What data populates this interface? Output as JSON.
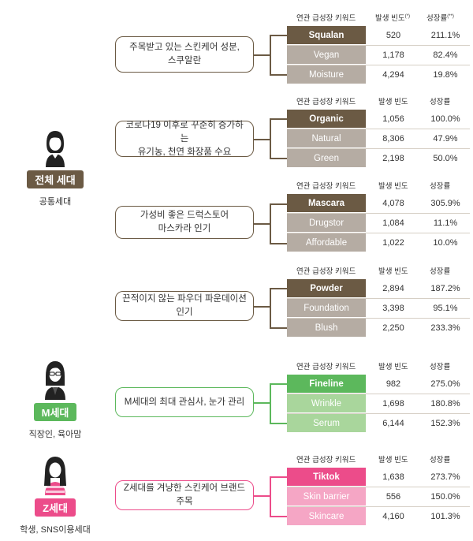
{
  "headers": {
    "keyword": "연관 급성장 키워드",
    "freq": "발생 빈도",
    "growth": "성장률",
    "freq_mark": "(*)",
    "growth_mark": "(**)"
  },
  "generations": [
    {
      "badge": "전체 세대",
      "sub": "공통세대",
      "color": "#6b5a44",
      "icon": "woman-short-hair-icon"
    },
    {
      "badge": "M세대",
      "sub": "직장인, 육아맘",
      "color": "#5cb85c",
      "icon": "woman-glasses-icon"
    },
    {
      "badge": "Z세대",
      "sub": "학생, SNS이용세대",
      "color": "#ec4c8a",
      "icon": "girl-long-hair-icon"
    }
  ],
  "groups": [
    {
      "desc": [
        "주목받고 있는 스킨케어 성분,",
        "스쿠알란"
      ],
      "rows": [
        {
          "keyword": "Squalan",
          "freq": "520",
          "growth": "211.1%"
        },
        {
          "keyword": "Vegan",
          "freq": "1,178",
          "growth": "82.4%"
        },
        {
          "keyword": "Moisture",
          "freq": "4,294",
          "growth": "19.8%"
        }
      ]
    },
    {
      "desc": [
        "코로나19 이후로 꾸준히 증가하는",
        "유기농, 천연 화장품 수요"
      ],
      "rows": [
        {
          "keyword": "Organic",
          "freq": "1,056",
          "growth": "100.0%"
        },
        {
          "keyword": "Natural",
          "freq": "8,306",
          "growth": "47.9%"
        },
        {
          "keyword": "Green",
          "freq": "2,198",
          "growth": "50.0%"
        }
      ]
    },
    {
      "desc": [
        "가성비 좋은 드럭스토어",
        "마스카라 인기"
      ],
      "rows": [
        {
          "keyword": "Mascara",
          "freq": "4,078",
          "growth": "305.9%"
        },
        {
          "keyword": "Drugstor",
          "freq": "1,084",
          "growth": "11.1%"
        },
        {
          "keyword": "Affordable",
          "freq": "1,022",
          "growth": "10.0%"
        }
      ]
    },
    {
      "desc": [
        "끈적이지 않는 파우더 파운데이션 인기"
      ],
      "rows": [
        {
          "keyword": "Powder",
          "freq": "2,894",
          "growth": "187.2%"
        },
        {
          "keyword": "Foundation",
          "freq": "3,398",
          "growth": "95.1%"
        },
        {
          "keyword": "Blush",
          "freq": "2,250",
          "growth": "233.3%"
        }
      ]
    },
    {
      "desc": [
        "M세대의 최대 관심사, 눈가 관리"
      ],
      "rows": [
        {
          "keyword": "Fineline",
          "freq": "982",
          "growth": "275.0%"
        },
        {
          "keyword": "Wrinkle",
          "freq": "1,698",
          "growth": "180.8%"
        },
        {
          "keyword": "Serum",
          "freq": "6,144",
          "growth": "152.3%"
        }
      ]
    },
    {
      "desc": [
        "Z세대를 겨냥한 스킨케어 브랜드 주목"
      ],
      "rows": [
        {
          "keyword": "Tiktok",
          "freq": "1,638",
          "growth": "273.7%"
        },
        {
          "keyword": "Skin barrier",
          "freq": "556",
          "growth": "150.0%"
        },
        {
          "keyword": "Skincare",
          "freq": "4,160",
          "growth": "101.3%"
        }
      ]
    }
  ],
  "colors": {
    "brown_dark": "#6b5a44",
    "brown_light": "#b5aca3",
    "green_dark": "#5cb85c",
    "green_light": "#a9d69c",
    "pink_dark": "#ec4c8a",
    "pink_light": "#f5a6c5"
  }
}
